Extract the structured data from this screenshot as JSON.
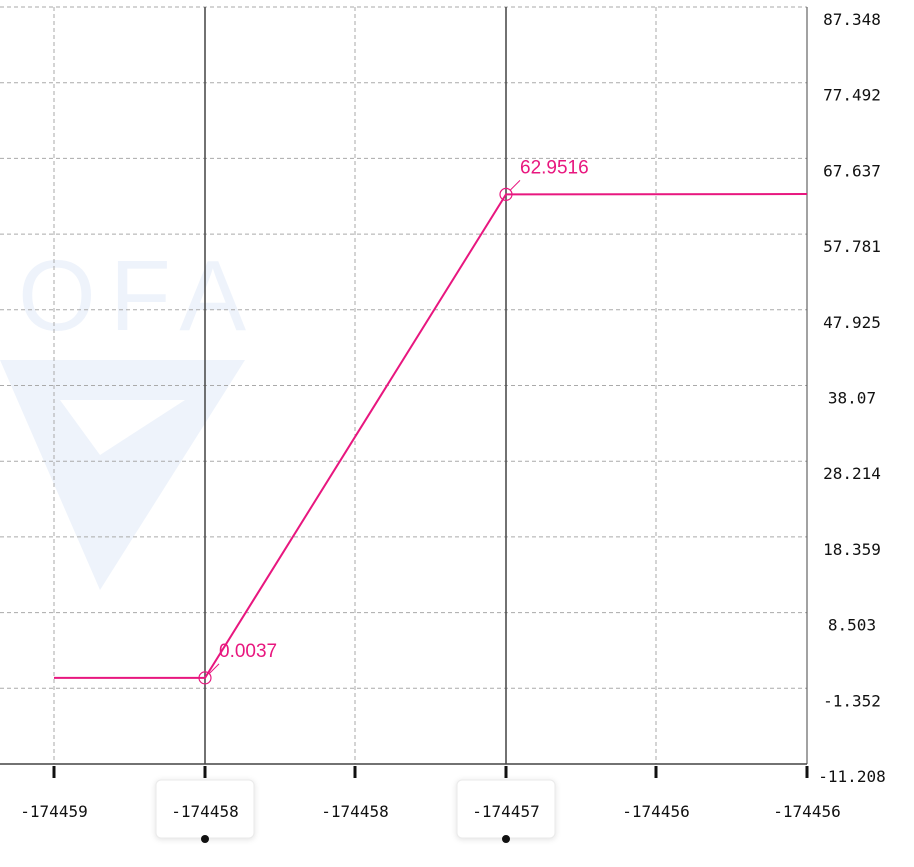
{
  "chart_data": {
    "type": "line",
    "series": [
      {
        "x": [
          -174459.5,
          -174458.0,
          -174457.0,
          -174456.0
        ],
        "y": [
          0.0037,
          0.0037,
          62.9516,
          63.0
        ],
        "color": "#e8177f"
      }
    ],
    "annotations": [
      {
        "x": -174458.0,
        "y": 0.0037,
        "label": "0.0037"
      },
      {
        "x": -174457.0,
        "y": 62.9516,
        "label": "62.9516"
      }
    ],
    "crosshair_x": [
      -174458.0,
      -174457.0
    ],
    "x_ticks": [
      "-174459",
      "-174458",
      "-174458",
      "-174457",
      "-174456",
      "-174456"
    ],
    "highlighted_x_ticks": [
      1,
      3
    ],
    "y_ticks": [
      "87.348",
      "77.492",
      "67.637",
      "57.781",
      "47.925",
      "38.07",
      "28.214",
      "18.359",
      "8.503",
      "-1.352",
      "-11.208"
    ],
    "ylim": [
      -11.208,
      87.348
    ],
    "grid": true,
    "watermark": "OFA",
    "colors": {
      "line": "#e8177f",
      "grid": "#aaaaaa",
      "crosshair": "#444444",
      "axis": "#444444",
      "watermark": "#eef3fb"
    }
  }
}
